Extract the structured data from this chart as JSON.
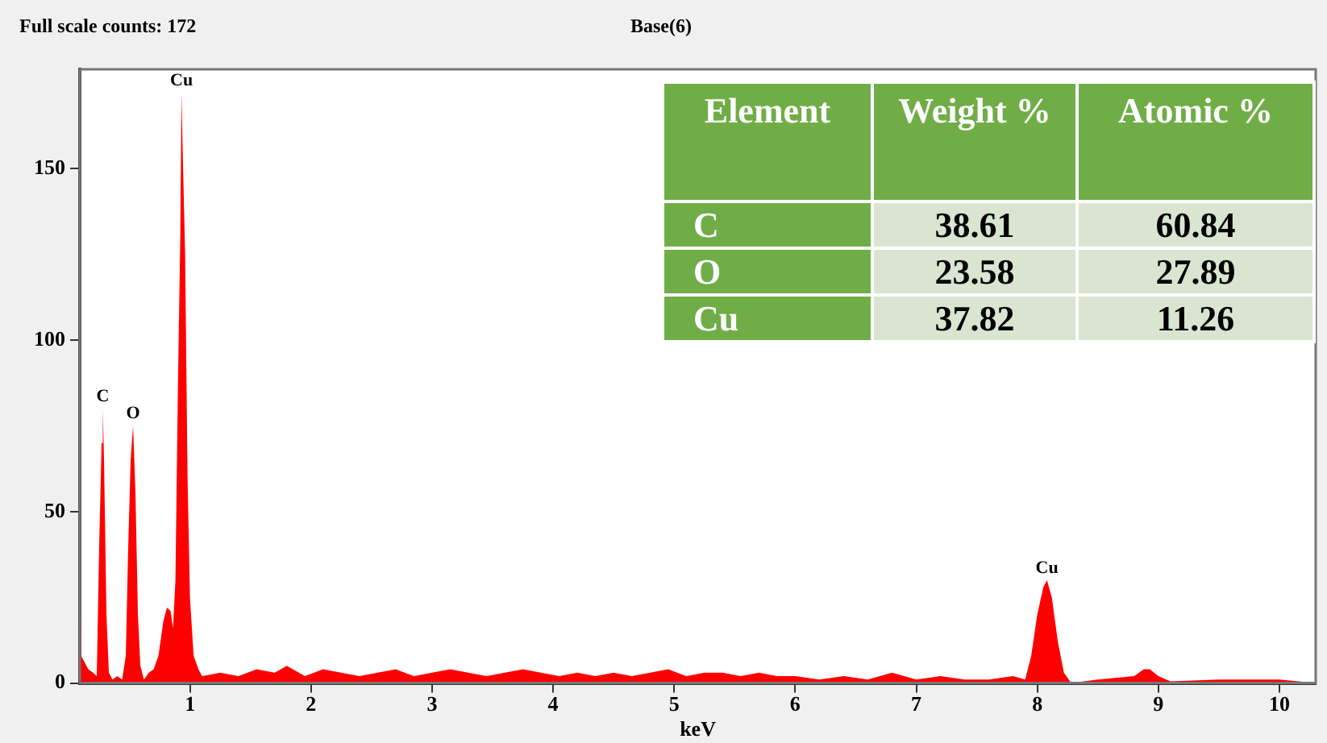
{
  "chart_data": {
    "type": "area",
    "title": "Base(6)",
    "subtitle": "Full scale counts: 172",
    "xlabel": "keV",
    "x": [
      0.09,
      0.1,
      0.13,
      0.16,
      0.2,
      0.23,
      0.25,
      0.27,
      0.28,
      0.29,
      0.31,
      0.33,
      0.36,
      0.4,
      0.44,
      0.47,
      0.49,
      0.51,
      0.53,
      0.55,
      0.57,
      0.59,
      0.62,
      0.66,
      0.7,
      0.74,
      0.78,
      0.81,
      0.84,
      0.86,
      0.88,
      0.9,
      0.92,
      0.93,
      0.94,
      0.96,
      0.98,
      1.0,
      1.03,
      1.07,
      1.1,
      1.25,
      1.4,
      1.55,
      1.7,
      1.8,
      1.95,
      2.1,
      2.25,
      2.4,
      2.55,
      2.7,
      2.85,
      3.0,
      3.15,
      3.3,
      3.45,
      3.6,
      3.75,
      3.9,
      4.05,
      4.2,
      4.35,
      4.5,
      4.65,
      4.8,
      4.95,
      5.1,
      5.25,
      5.4,
      5.55,
      5.7,
      5.85,
      6.0,
      6.2,
      6.4,
      6.6,
      6.8,
      7.0,
      7.2,
      7.4,
      7.6,
      7.8,
      7.9,
      7.95,
      8.0,
      8.05,
      8.08,
      8.12,
      8.17,
      8.22,
      8.28,
      8.5,
      8.8,
      8.88,
      8.93,
      9.0,
      9.1,
      9.5,
      10.0,
      10.3
    ],
    "series": [
      {
        "color": "#ff0000",
        "values": [
          66,
          8,
          6,
          4,
          3,
          2,
          40,
          70,
          80,
          65,
          20,
          3,
          1,
          2,
          1,
          8,
          40,
          65,
          75,
          55,
          20,
          5,
          1,
          3,
          4,
          8,
          18,
          22,
          21,
          16,
          30,
          85,
          130,
          172,
          155,
          125,
          60,
          25,
          8,
          4,
          2,
          3,
          2,
          4,
          3,
          5,
          2,
          4,
          3,
          2,
          3,
          4,
          2,
          3,
          4,
          3,
          2,
          3,
          4,
          3,
          2,
          3,
          2,
          3,
          2,
          3,
          4,
          2,
          3,
          3,
          2,
          3,
          2,
          2,
          1,
          2,
          1,
          3,
          1,
          2,
          1,
          1,
          2,
          1,
          8,
          20,
          28,
          30,
          25,
          12,
          3,
          0,
          1,
          2,
          4,
          4,
          2,
          0.5,
          1,
          1,
          0
        ]
      }
    ],
    "xlim": [
      0.09,
      10.3
    ],
    "xticks": [
      1,
      2,
      3,
      4,
      5,
      6,
      7,
      8,
      9,
      10
    ],
    "ylim": [
      0,
      179
    ],
    "yticks": [
      0,
      50,
      100,
      150
    ],
    "grid": false,
    "legend": false,
    "marker": "none",
    "annotations": [
      {
        "text": "C",
        "x": 0.28,
        "y": 80
      },
      {
        "text": "O",
        "x": 0.53,
        "y": 75
      },
      {
        "text": "Cu",
        "x": 0.93,
        "y": 172
      },
      {
        "text": "Cu",
        "x": 8.08,
        "y": 30
      },
      "Element",
      "Weight %",
      "Atomic %",
      "C",
      "38.61",
      "60.84",
      "O",
      "23.58",
      "27.89",
      "Cu",
      "37.82",
      "11.26"
    ]
  }
}
